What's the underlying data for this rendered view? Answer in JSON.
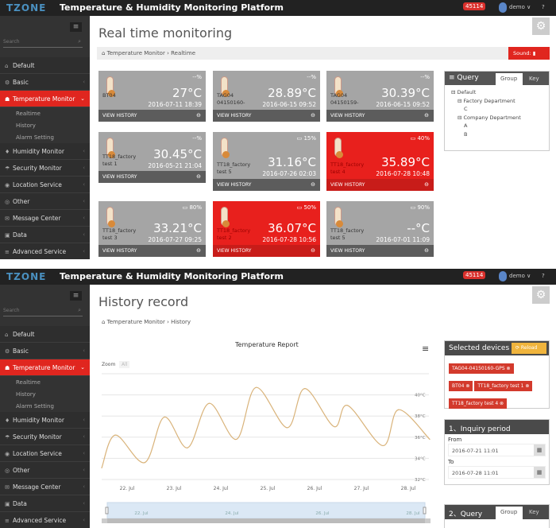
{
  "app": {
    "logo": "TZONE",
    "title": "Temperature & Humidity Monitoring Platform",
    "badge": "45114",
    "user": "demo ∨",
    "help": "?"
  },
  "sidebar": {
    "search_placeholder": "Search",
    "items": [
      {
        "label": "Default",
        "icon": "home"
      },
      {
        "label": "Basic",
        "icon": "gears"
      },
      {
        "label": "Temperature Monitor",
        "icon": "thermo",
        "active": true,
        "children": [
          "Realtime",
          "History",
          "Alarm Setting"
        ]
      },
      {
        "label": "Humidity Monitor",
        "icon": "drop"
      },
      {
        "label": "Security Monitor",
        "icon": "umbrella"
      },
      {
        "label": "Location Service",
        "icon": "globe"
      },
      {
        "label": "Other",
        "icon": "circle"
      },
      {
        "label": "Message Center",
        "icon": "envelope"
      },
      {
        "label": "Data",
        "icon": "image"
      },
      {
        "label": "Advanced Service",
        "icon": "list"
      }
    ]
  },
  "realtime": {
    "title": "Real time monitoring",
    "breadcrumb": "⌂ Temperature Monitor › Realtime",
    "sound_label": "Sound: ▮",
    "view_history": "VIEW HISTORY",
    "cards": [
      {
        "name": "BT04",
        "temp": "27°C",
        "date": "2016-07-11 18:39",
        "battery": "--%",
        "alarm": false
      },
      {
        "name": "TAG04 04150160-",
        "temp": "28.89°C",
        "date": "2016-06-15 09:52",
        "battery": "--%",
        "alarm": false
      },
      {
        "name": "TAG04 04150159-",
        "temp": "30.39°C",
        "date": "2016-06-15 09:52",
        "battery": "--%",
        "alarm": false
      },
      {
        "name": "TT18_factory test 1",
        "temp": "30.45°C",
        "date": "2016-05-21 21:04",
        "battery": "--%",
        "alarm": false
      },
      {
        "name": "TT18_factory test 5",
        "temp": "31.16°C",
        "date": "2016-07-26 02:03",
        "battery": "15%",
        "alarm": false
      },
      {
        "name": "TT18_factory test 4",
        "temp": "35.89°C",
        "date": "2016-07-28 10:48",
        "battery": "40%",
        "alarm": true
      },
      {
        "name": "TT18_factory test 3",
        "temp": "33.21°C",
        "date": "2016-07-27 09:25",
        "battery": "80%",
        "alarm": false
      },
      {
        "name": "TT18_factory test 2",
        "temp": "36.07°C",
        "date": "2016-07-28 10:56",
        "battery": "50%",
        "alarm": true
      },
      {
        "name": "TT18_factory test 5",
        "temp": "--°C",
        "date": "2016-07-01 11:09",
        "battery": "90%",
        "alarm": false
      }
    ],
    "query": {
      "title": "≡ Query",
      "tabs": [
        "Group",
        "Key"
      ],
      "tree": [
        "⊟ Default",
        "⊟ Factory Department",
        "C",
        "⊟ Company Department",
        "A",
        "B"
      ]
    }
  },
  "history": {
    "title": "History record",
    "breadcrumb": "⌂ Temperature Monitor › History",
    "selected_devices": {
      "title": "Selected devices",
      "reload": "⟳ Reload",
      "tags": [
        "TAG04-04150160-GPS ⊗",
        "BT04 ⊗",
        "TT18_factory test 1 ⊗",
        "TT18_factory test 4 ⊗"
      ]
    },
    "period": {
      "title": "1、Inquiry period",
      "from_label": "From",
      "from": "2016-07-21 11:01",
      "to_label": "To",
      "to": "2016-07-28 11:01"
    },
    "query": {
      "title": "2、Query",
      "tabs": [
        "Group",
        "Key"
      ]
    },
    "navigator_labels": [
      "22. Jul",
      "24. Jul",
      "26. Jul",
      "28. Jul"
    ]
  },
  "chart_data": {
    "type": "line",
    "title": "Temperature Report",
    "zoom_label": "Zoom",
    "zoom_button": "All",
    "x_ticks": [
      "22. Jul",
      "23. Jul",
      "24. Jul",
      "25. Jul",
      "26. Jul",
      "27. Jul",
      "28. Jul"
    ],
    "y_ticks": [
      "32°C",
      "34°C",
      "36°C",
      "38°C",
      "40°C"
    ],
    "ylim": [
      32,
      42
    ],
    "grid": true,
    "color": "#d9b37a",
    "x": [
      "2016-07-21 11:00",
      "2016-07-21 18:00",
      "2016-07-22 09:00",
      "2016-07-22 19:00",
      "2016-07-23 07:00",
      "2016-07-23 18:00",
      "2016-07-24 08:00",
      "2016-07-24 18:00",
      "2016-07-25 10:00",
      "2016-07-25 19:00",
      "2016-07-26 10:00",
      "2016-07-26 17:00",
      "2016-07-27 11:00",
      "2016-07-27 19:00",
      "2016-07-28 11:00"
    ],
    "values": [
      33.1,
      36.2,
      33.6,
      37.9,
      35.0,
      39.2,
      35.8,
      40.7,
      36.9,
      40.6,
      37.0,
      39.0,
      35.2,
      38.6,
      35.8
    ]
  },
  "colors": {
    "accent": "#e0261f",
    "header": "#222222",
    "sidebar": "#333333",
    "card": "#a5a5a5",
    "reload": "#f0b43c"
  }
}
